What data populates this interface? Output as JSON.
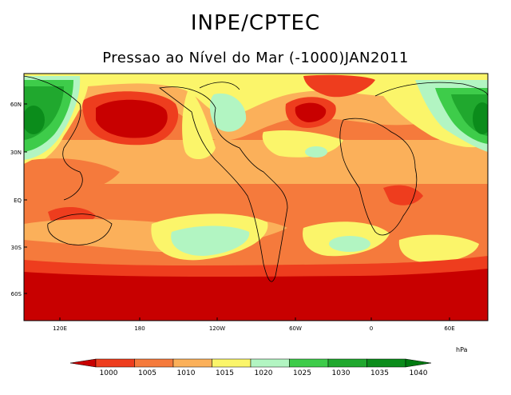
{
  "header": {
    "title": "INPE/CPTEC",
    "subtitle": "Pressao ao Nível do Mar (-1000)JAN2011"
  },
  "map": {
    "lat_ticks": [
      "60N",
      "30N",
      "EQ",
      "30S",
      "60S"
    ],
    "lon_ticks": [
      "120E",
      "180",
      "120W",
      "60W",
      "0",
      "60E"
    ]
  },
  "colorbar": {
    "unit": "hPa",
    "levels": [
      "1000",
      "1005",
      "1010",
      "1015",
      "1020",
      "1025",
      "1030",
      "1035",
      "1040"
    ],
    "colors": [
      "#c80000",
      "#ee3d1e",
      "#f57a3c",
      "#fbb05a",
      "#fbf56a",
      "#b2f5c2",
      "#3ecc4a",
      "#20a82e",
      "#0b8c1b",
      "#007a10"
    ]
  }
}
